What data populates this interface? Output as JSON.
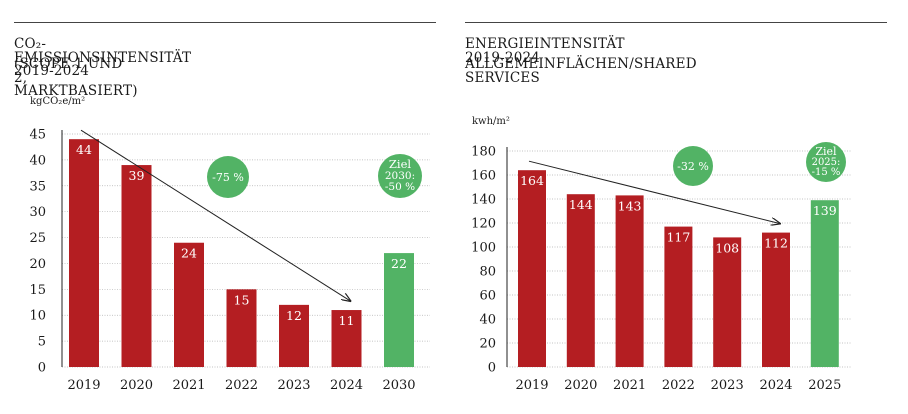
{
  "charts": [
    {
      "title": "CO₂-EMISSIONSINTENSITÄT 2019-2024",
      "subtitle": "(SCOPE 1 UND 2, MARKTBASIERT)",
      "unit": "kgCO₂e/m²",
      "badge_reduction": "-75 %",
      "badge_target_lines": [
        "Ziel",
        "2030:",
        "-50 %"
      ]
    },
    {
      "title": "ENERGIEINTENSITÄT 2019-2024",
      "subtitle": "ALLGEMEINFLÄCHEN/SHARED SERVICES",
      "unit": "kwh/m²",
      "badge_reduction": "-32 %",
      "badge_target_lines": [
        "Ziel",
        "2025:",
        "-15 %"
      ]
    }
  ],
  "colors": {
    "actual": "#b41e22",
    "target": "#52b365",
    "grid": "#b0b0b0",
    "axis": "#222222"
  },
  "chart_data": [
    {
      "type": "bar",
      "title": "CO₂-EMISSIONSINTENSITÄT 2019-2024",
      "subtitle": "(SCOPE 1 UND 2, MARKTBASIERT)",
      "ylabel": "kgCO₂e/m²",
      "categories": [
        "2019",
        "2020",
        "2021",
        "2022",
        "2023",
        "2024",
        "2030"
      ],
      "values": [
        44,
        39,
        24,
        15,
        12,
        11,
        22
      ],
      "target_category": "2030",
      "ylim": [
        0,
        45
      ],
      "yticks": [
        0,
        5,
        10,
        15,
        20,
        25,
        30,
        35,
        40,
        45
      ],
      "grid": true,
      "trend_arrow": {
        "from": "2019",
        "to": "2024"
      },
      "annotations": [
        "-75 %",
        "Ziel 2030: -50 %"
      ]
    },
    {
      "type": "bar",
      "title": "ENERGIEINTENSITÄT 2019-2024",
      "subtitle": "ALLGEMEINFLÄCHEN/SHARED SERVICES",
      "ylabel": "kwh/m²",
      "categories": [
        "2019",
        "2020",
        "2021",
        "2022",
        "2023",
        "2024",
        "2025"
      ],
      "values": [
        164,
        144,
        143,
        117,
        108,
        112,
        139
      ],
      "target_category": "2025",
      "ylim": [
        0,
        180
      ],
      "yticks": [
        0,
        20,
        40,
        60,
        80,
        100,
        120,
        140,
        160,
        180
      ],
      "grid": true,
      "trend_arrow": {
        "from": "2019",
        "to": "2024"
      },
      "annotations": [
        "-32 %",
        "Ziel 2025: -15 %"
      ]
    }
  ]
}
